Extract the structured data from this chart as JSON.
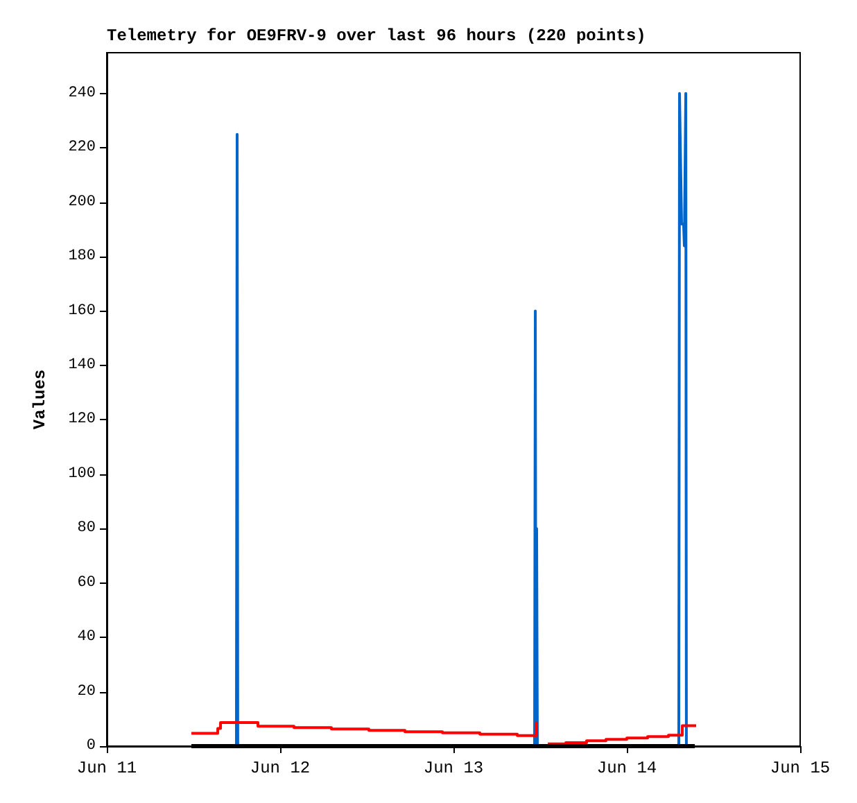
{
  "chart_data": {
    "type": "line",
    "title": "Telemetry for OE9FRV-9 over last 96 hours (220 points)",
    "ylabel": "Values",
    "marker": "none",
    "line_style": "solid",
    "grid": false,
    "xlim": [
      "--06-11",
      "--06-15"
    ],
    "ylim": [
      0,
      255
    ],
    "xticks": [
      {
        "value": "--06-11",
        "label": "Jun 11"
      },
      {
        "value": "--06-12",
        "label": "Jun 12"
      },
      {
        "value": "--06-13",
        "label": "Jun 13"
      },
      {
        "value": "--06-14",
        "label": "Jun 14"
      },
      {
        "value": "--06-15",
        "label": "Jun 15"
      }
    ],
    "yticks": [
      0,
      20,
      40,
      60,
      80,
      100,
      120,
      140,
      160,
      180,
      200,
      220,
      240
    ],
    "series": [
      {
        "color": "#000000",
        "x": [
          "--06-11T11:43",
          "--06-14T09:25"
        ],
        "values": [
          0,
          0
        ]
      },
      {
        "color": "#0066cc",
        "x": [
          "--06-11T11:43",
          "--06-11T17:57",
          "--06-11T18:03",
          "--06-11T18:08",
          "--06-13T11:14",
          "--06-13T11:20",
          "--06-13T11:25",
          "--06-13T11:31",
          "--06-13T11:37",
          "--06-14T07:12",
          "--06-14T07:18",
          "--06-14T07:23",
          "--06-14T07:35",
          "--06-14T07:52",
          "--06-14T07:58",
          "--06-14T08:10",
          "--06-14T08:15",
          "--06-14T09:25"
        ],
        "values": [
          0,
          0,
          225,
          0,
          0,
          160,
          0,
          80,
          0,
          0,
          240,
          225,
          192,
          192,
          184,
          240,
          0,
          0
        ]
      },
      {
        "type": "step",
        "color": "#ff0000",
        "x": [
          "--06-11T11:43",
          "--06-11T15:22",
          "--06-11T15:45",
          "--06-11T20:56",
          "--06-12T01:55",
          "--06-12T07:06",
          "--06-12T12:17",
          "--06-12T17:17",
          "--06-12T22:28",
          "--06-13T03:39",
          "--06-13T08:50",
          "--06-13T11:31",
          "--06-13T11:37",
          "--06-13T13:04",
          "--06-13T15:33",
          "--06-13T18:26",
          "--06-13T21:07",
          "--06-14T00:00",
          "--06-14T02:53",
          "--06-14T05:46",
          "--06-14T07:41",
          "--06-14T09:36"
        ],
        "values": [
          4.7,
          6.5,
          8.7,
          7.3,
          6.8,
          6.3,
          5.8,
          5.3,
          4.9,
          4.4,
          3.9,
          9,
          null,
          0.8,
          1.3,
          2,
          2.5,
          3,
          3.5,
          4,
          7.5,
          7.5
        ]
      }
    ]
  }
}
